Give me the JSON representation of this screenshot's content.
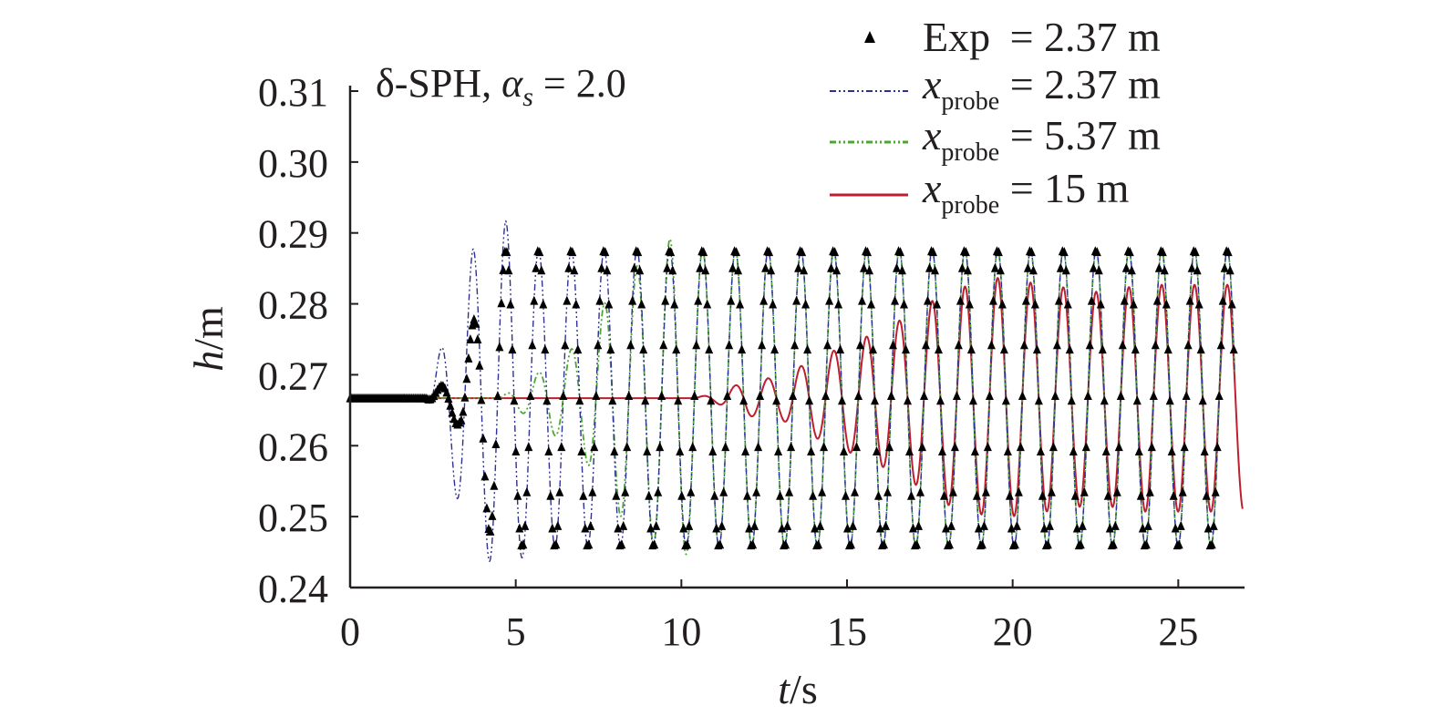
{
  "chart_data": {
    "type": "line",
    "annotation": {
      "prefix": "δ-SPH, ",
      "symbol": "α",
      "subscript": "s",
      "value": " = 2.0"
    },
    "xlabel": {
      "var": "t",
      "unit": "/s"
    },
    "ylabel": {
      "var": "h",
      "unit": "/m"
    },
    "xlim": [
      0,
      27
    ],
    "ylim": [
      0.24,
      0.31
    ],
    "xticks": [
      0,
      5,
      10,
      15,
      20,
      25
    ],
    "yticks": [
      0.24,
      0.25,
      0.26,
      0.27,
      0.28,
      0.29,
      0.3,
      0.31
    ],
    "ytick_labels": [
      "0.24",
      "0.25",
      "0.26",
      "0.27",
      "0.28",
      "0.29",
      "0.30",
      "0.31"
    ],
    "grid": false,
    "legend_position": "top-right",
    "wave": {
      "mean": 0.2667,
      "period": 0.99,
      "phase_ref_t": 4.7
    },
    "series": [
      {
        "key": "exp",
        "marker": "triangle",
        "color": "#000000",
        "legend": {
          "main": "Exp",
          "rest": " = 2.37 m"
        },
        "start_t": 2.3,
        "ramp": [
          [
            0,
            0
          ],
          [
            2.3,
            0
          ],
          [
            3.3,
            0.004
          ],
          [
            4.2,
            0.019
          ],
          [
            4.7,
            0.021
          ],
          [
            27,
            0.021
          ]
        ],
        "t_max": 26.7
      },
      {
        "key": "p237",
        "style": "dash-dot-dot",
        "color": "#2e3192",
        "legend": {
          "main": "x",
          "sub": "probe",
          "rest": " = 2.37 m"
        },
        "start_t": 2.3,
        "ramp": [
          [
            0,
            0
          ],
          [
            2.3,
            0
          ],
          [
            2.8,
            0.008
          ],
          [
            3.7,
            0.021
          ],
          [
            4.2,
            0.023
          ],
          [
            4.7,
            0.025
          ],
          [
            5.5,
            0.021
          ],
          [
            27,
            0.021
          ]
        ],
        "t_max": 26.7
      },
      {
        "key": "p537",
        "style": "dash-dot-dot",
        "color": "#4aa82e",
        "legend": {
          "main": "x",
          "sub": "probe",
          "rest": " = 5.37 m"
        },
        "start_t": 4.5,
        "ramp": [
          [
            0,
            0
          ],
          [
            4.5,
            0
          ],
          [
            5.5,
            0.003
          ],
          [
            7.0,
            0.008
          ],
          [
            8.0,
            0.016
          ],
          [
            9.0,
            0.02
          ],
          [
            9.8,
            0.023
          ],
          [
            10.5,
            0.021
          ],
          [
            27,
            0.021
          ]
        ],
        "t_max": 26.7
      },
      {
        "key": "p15",
        "style": "solid",
        "color": "#be1e2d",
        "legend": {
          "main": "x",
          "sub": "probe",
          "rest": " = 15 m"
        },
        "start_t": 10.2,
        "ramp": [
          [
            0,
            0
          ],
          [
            10.3,
            0
          ],
          [
            11.0,
            0.0006
          ],
          [
            12.0,
            0.0025
          ],
          [
            13.0,
            0.003
          ],
          [
            14.0,
            0.0055
          ],
          [
            15.0,
            0.0075
          ],
          [
            16.0,
            0.0095
          ],
          [
            17.0,
            0.012
          ],
          [
            18.0,
            0.015
          ],
          [
            19.5,
            0.017
          ],
          [
            21.0,
            0.016
          ],
          [
            22.5,
            0.015
          ],
          [
            24.0,
            0.016
          ],
          [
            25.5,
            0.016
          ],
          [
            27,
            0.016
          ]
        ],
        "t_max": 26.95
      }
    ]
  }
}
